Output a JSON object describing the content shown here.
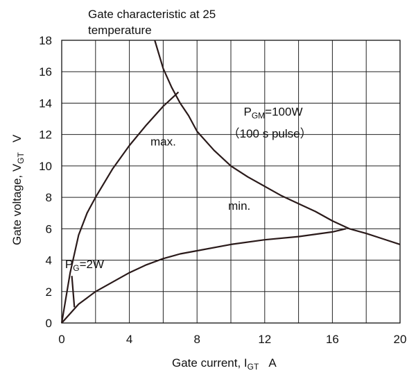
{
  "chart_data": {
    "type": "line",
    "title": [
      "Gate characteristic at  25",
      "temperature"
    ],
    "xlabel": "Gate current, I",
    "xlabel_sub": "GT",
    "xlabel_unit": "A",
    "ylabel": "Gate voltage, V",
    "ylabel_sub": "GT",
    "ylabel_unit": "V",
    "xlim": [
      0,
      20
    ],
    "ylim": [
      0,
      18
    ],
    "x_ticks": [
      0,
      4,
      8,
      12,
      16,
      20
    ],
    "y_ticks": [
      0,
      2,
      4,
      6,
      8,
      10,
      12,
      14,
      16,
      18
    ],
    "grid": true,
    "series": [
      {
        "x": [
          0,
          0.5,
          1,
          1.5,
          2,
          3,
          4,
          5,
          6,
          6.9
        ],
        "y": [
          0,
          3.2,
          5.6,
          7.0,
          8.0,
          9.8,
          11.3,
          12.6,
          13.8,
          14.7
        ]
      },
      {
        "x": [
          0,
          1,
          2,
          3,
          4,
          5,
          6,
          7,
          8,
          10,
          12,
          14,
          16,
          16.8
        ],
        "y": [
          0,
          1.2,
          2.0,
          2.6,
          3.2,
          3.7,
          4.1,
          4.4,
          4.6,
          5.0,
          5.3,
          5.5,
          5.8,
          6.0
        ]
      },
      {
        "x": [
          5.5,
          6,
          6.5,
          7,
          7.5,
          8,
          9,
          10,
          11,
          12,
          13,
          14,
          15,
          16,
          17,
          18,
          19,
          20
        ],
        "y": [
          18.0,
          16.2,
          15.0,
          14.0,
          13.2,
          12.2,
          11.0,
          10.0,
          9.3,
          8.7,
          8.1,
          7.6,
          7.1,
          6.5,
          6.0,
          5.7,
          5.35,
          5.0
        ]
      },
      {
        "x": [
          0.6,
          0.75
        ],
        "y": [
          3.0,
          1.0
        ]
      }
    ],
    "annotations": [
      {
        "id": "pgm_main",
        "text": "P",
        "sub": "GM",
        "rest": "=100W",
        "x": 12.5,
        "y": 13.2
      },
      {
        "id": "pgm_note",
        "text": "（100   s  pulse）",
        "x": 12.3,
        "y": 11.8
      },
      {
        "id": "max",
        "text": "max.",
        "x": 6.0,
        "y": 11.3
      },
      {
        "id": "min",
        "text": "min.",
        "x": 10.5,
        "y": 7.2
      },
      {
        "id": "pg",
        "text": "P",
        "sub": "G",
        "rest": "=2W",
        "x": 1.35,
        "y": 3.5
      }
    ]
  }
}
